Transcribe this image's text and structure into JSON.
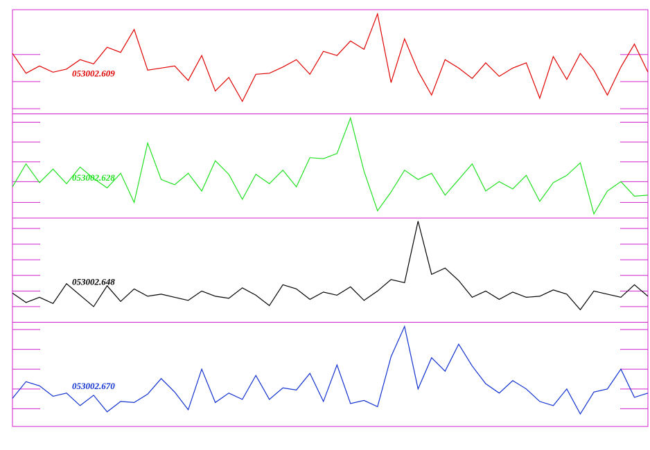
{
  "chart_data": [
    {
      "type": "line",
      "xlim": [
        0,
        47
      ],
      "ylim": [
        0,
        10
      ],
      "yticks": [
        0.5,
        3.1,
        5.7
      ],
      "x": [
        0,
        1,
        2,
        3,
        4,
        5,
        6,
        7,
        8,
        9,
        10,
        11,
        12,
        13,
        14,
        15,
        16,
        17,
        18,
        19,
        20,
        21,
        22,
        23,
        24,
        25,
        26,
        27,
        28,
        29,
        30,
        31,
        32,
        33,
        34,
        35,
        36,
        37,
        38,
        39,
        40,
        41,
        42,
        43,
        44,
        45,
        46,
        47
      ],
      "series": [
        {
          "name": "053002.609",
          "color": "#e00000",
          "values": [
            5.8,
            3.9,
            4.6,
            4.0,
            4.3,
            5.2,
            4.8,
            6.4,
            5.9,
            8.1,
            4.2,
            4.4,
            4.6,
            3.2,
            5.6,
            2.2,
            3.5,
            1.2,
            3.8,
            3.9,
            4.5,
            5.2,
            3.8,
            6.0,
            5.6,
            7.0,
            6.2,
            9.6,
            3.0,
            7.2,
            4.1,
            1.8,
            5.2,
            4.4,
            3.4,
            4.9,
            3.6,
            4.4,
            4.9,
            1.5,
            5.5,
            3.3,
            5.8,
            4.2,
            1.8,
            4.5,
            6.7,
            4.0
          ]
        }
      ]
    },
    {
      "type": "line",
      "xlim": [
        0,
        47
      ],
      "ylim": [
        0,
        10
      ],
      "yticks": [
        1.5,
        3.5,
        5.4,
        7.3,
        9.2
      ],
      "x": [
        0,
        1,
        2,
        3,
        4,
        5,
        6,
        7,
        8,
        9,
        10,
        11,
        12,
        13,
        14,
        15,
        16,
        17,
        18,
        19,
        20,
        21,
        22,
        23,
        24,
        25,
        26,
        27,
        28,
        29,
        30,
        31,
        32,
        33,
        34,
        35,
        36,
        37,
        38,
        39,
        40,
        41,
        42,
        43,
        44,
        45,
        46,
        47
      ],
      "series": [
        {
          "name": "053002.628",
          "color": "#20e020",
          "values": [
            3.0,
            5.2,
            3.4,
            4.7,
            3.3,
            4.9,
            3.8,
            2.9,
            4.3,
            1.5,
            7.2,
            3.7,
            3.2,
            4.3,
            2.6,
            5.5,
            4.2,
            1.8,
            4.2,
            3.3,
            4.6,
            3.0,
            5.8,
            5.7,
            6.2,
            9.6,
            4.5,
            0.7,
            2.5,
            4.6,
            3.7,
            4.3,
            2.2,
            3.7,
            5.2,
            2.6,
            3.5,
            2.8,
            4.1,
            1.6,
            3.4,
            4.1,
            5.3,
            0.4,
            2.6,
            3.5,
            2.1,
            2.2
          ]
        }
      ]
    },
    {
      "type": "line",
      "xlim": [
        0,
        47
      ],
      "ylim": [
        0,
        10
      ],
      "yticks": [
        1.5,
        3.0,
        4.5,
        6.0,
        7.5,
        9.0
      ],
      "x": [
        0,
        1,
        2,
        3,
        4,
        5,
        6,
        7,
        8,
        9,
        10,
        11,
        12,
        13,
        14,
        15,
        16,
        17,
        18,
        19,
        20,
        21,
        22,
        23,
        24,
        25,
        26,
        27,
        28,
        29,
        30,
        31,
        32,
        33,
        34,
        35,
        36,
        37,
        38,
        39,
        40,
        41,
        42,
        43,
        44,
        45,
        46,
        47
      ],
      "series": [
        {
          "name": "053002.648",
          "color": "#000000",
          "values": [
            2.8,
            1.9,
            2.4,
            1.8,
            3.7,
            2.6,
            1.5,
            3.5,
            2.0,
            3.2,
            2.5,
            2.7,
            2.4,
            2.1,
            3.0,
            2.5,
            2.3,
            3.3,
            2.6,
            1.6,
            3.6,
            3.2,
            2.2,
            2.9,
            2.6,
            3.4,
            2.1,
            3.0,
            4.1,
            3.8,
            9.7,
            4.6,
            5.2,
            4.0,
            2.4,
            3.0,
            2.2,
            2.9,
            2.4,
            2.5,
            3.1,
            2.7,
            1.2,
            3.0,
            2.7,
            2.4,
            3.6,
            2.5
          ]
        }
      ]
    },
    {
      "type": "line",
      "xlim": [
        0,
        47
      ],
      "ylim": [
        0,
        10
      ],
      "yticks": [
        1.7,
        3.6,
        5.5,
        7.4,
        9.3
      ],
      "x": [
        0,
        1,
        2,
        3,
        4,
        5,
        6,
        7,
        8,
        9,
        10,
        11,
        12,
        13,
        14,
        15,
        16,
        17,
        18,
        19,
        20,
        21,
        22,
        23,
        24,
        25,
        26,
        27,
        28,
        29,
        30,
        31,
        32,
        33,
        34,
        35,
        36,
        37,
        38,
        39,
        40,
        41,
        42,
        43,
        44,
        45,
        46,
        47
      ],
      "series": [
        {
          "name": "053002.670",
          "color": "#1030d0",
          "values": [
            2.7,
            4.3,
            3.9,
            2.9,
            3.2,
            2.0,
            3.0,
            1.4,
            2.4,
            2.3,
            3.1,
            4.6,
            3.3,
            1.6,
            5.5,
            2.3,
            3.2,
            2.6,
            4.9,
            2.6,
            3.7,
            3.5,
            5.1,
            2.4,
            5.9,
            2.2,
            2.5,
            1.9,
            6.7,
            9.6,
            3.6,
            6.6,
            5.3,
            7.9,
            5.8,
            4.1,
            3.2,
            4.4,
            3.6,
            2.4,
            2.0,
            3.6,
            1.2,
            3.3,
            3.6,
            5.5,
            2.8,
            3.2
          ]
        }
      ]
    }
  ]
}
